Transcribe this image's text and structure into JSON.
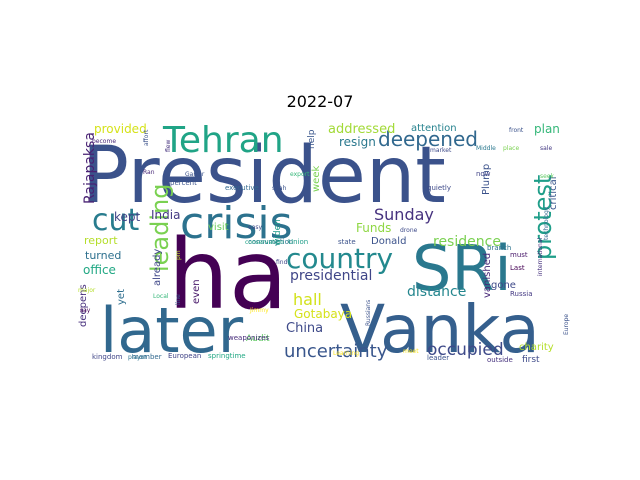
{
  "chart_data": {
    "type": "wordcloud",
    "title": "2022-07",
    "words": [
      {
        "text": "President",
        "weight": 100,
        "color": "#3b528b",
        "rotate": false
      },
      {
        "text": "ha",
        "weight": 92,
        "color": "#440154",
        "rotate": false
      },
      {
        "text": "later",
        "weight": 74,
        "color": "#31688e",
        "rotate": false
      },
      {
        "text": "Vanka",
        "weight": 72,
        "color": "#355f8d",
        "rotate": false
      },
      {
        "text": "SRi",
        "weight": 68,
        "color": "#2a788e",
        "rotate": false
      },
      {
        "text": "crisis",
        "weight": 50,
        "color": "#2c728e",
        "rotate": false
      },
      {
        "text": "Tehran",
        "weight": 42,
        "color": "#20a486",
        "rotate": false
      },
      {
        "text": "cut",
        "weight": 34,
        "color": "#287c8e",
        "rotate": false
      },
      {
        "text": "country",
        "weight": 30,
        "color": "#23898e",
        "rotate": false
      },
      {
        "text": "leading",
        "weight": 24,
        "color": "#7ad151",
        "rotate": true
      },
      {
        "text": "protest",
        "weight": 24,
        "color": "#1f9e89",
        "rotate": true
      },
      {
        "text": "deepened",
        "weight": 22,
        "color": "#31688e",
        "rotate": false
      },
      {
        "text": "uncertainty",
        "weight": 21,
        "color": "#39568c",
        "rotate": false
      },
      {
        "text": "occupied",
        "weight": 19,
        "color": "#3e4a89",
        "rotate": false
      },
      {
        "text": "Sunday",
        "weight": 18,
        "color": "#46327e",
        "rotate": false
      },
      {
        "text": "hall",
        "weight": 18,
        "color": "#d2e21b",
        "rotate": false
      },
      {
        "text": "presidential",
        "weight": 16,
        "color": "#404688",
        "rotate": false
      },
      {
        "text": "distance",
        "weight": 15,
        "color": "#24868e",
        "rotate": false
      },
      {
        "text": "residence",
        "weight": 15,
        "color": "#7ad151",
        "rotate": false
      },
      {
        "text": "Rajapaksa",
        "weight": 14,
        "color": "#482173",
        "rotate": true
      },
      {
        "text": "addressed",
        "weight": 14,
        "color": "#a2da37",
        "rotate": false
      },
      {
        "text": "China",
        "weight": 14,
        "color": "#3e4a89",
        "rotate": false
      },
      {
        "text": "provided",
        "weight": 13,
        "color": "#d5e21a",
        "rotate": false
      },
      {
        "text": "plan",
        "weight": 13,
        "color": "#35b779",
        "rotate": false
      },
      {
        "text": "resign",
        "weight": 13,
        "color": "#2a788e",
        "rotate": false
      },
      {
        "text": "India",
        "weight": 13,
        "color": "#443983",
        "rotate": false
      },
      {
        "text": "Funds",
        "weight": 13,
        "color": "#8fd744",
        "rotate": false
      },
      {
        "text": "office",
        "weight": 13,
        "color": "#22a884",
        "rotate": false
      },
      {
        "text": "Gotabaya",
        "weight": 12,
        "color": "#d5e21a",
        "rotate": false
      },
      {
        "text": "kept",
        "weight": 12,
        "color": "#414487",
        "rotate": false
      },
      {
        "text": "report",
        "weight": 12,
        "color": "#b5de2b",
        "rotate": false
      },
      {
        "text": "turned",
        "weight": 12,
        "color": "#2d708e",
        "rotate": false
      },
      {
        "text": "deepens",
        "weight": 11,
        "color": "#472f7d",
        "rotate": true
      },
      {
        "text": "gone",
        "weight": 11,
        "color": "#3e4989",
        "rotate": false
      },
      {
        "text": "attention",
        "weight": 11,
        "color": "#26828e",
        "rotate": false
      },
      {
        "text": "charity",
        "weight": 11,
        "color": "#b5de2b",
        "rotate": false
      },
      {
        "text": "Donald",
        "weight": 11,
        "color": "#3b528b",
        "rotate": false
      },
      {
        "text": "Plump",
        "weight": 11,
        "color": "#3b528b",
        "rotate": true
      },
      {
        "text": "week",
        "weight": 11,
        "color": "#7ad151",
        "rotate": true
      },
      {
        "text": "vanished",
        "weight": 11,
        "color": "#482878",
        "rotate": true
      },
      {
        "text": "critical",
        "weight": 11,
        "color": "#39568c",
        "rotate": true
      },
      {
        "text": "yet",
        "weight": 11,
        "color": "#2e6e8e",
        "rotate": true
      },
      {
        "text": "already",
        "weight": 11,
        "color": "#3f4788",
        "rotate": true
      },
      {
        "text": "even",
        "weight": 11,
        "color": "#48186a",
        "rotate": true
      },
      {
        "text": "visit",
        "weight": 10,
        "color": "#6ccd5a",
        "rotate": false
      },
      {
        "text": "Audit",
        "weight": 9,
        "color": "#5ec962",
        "rotate": false
      },
      {
        "text": "first",
        "weight": 9,
        "color": "#3e4a89",
        "rotate": false
      },
      {
        "text": "help",
        "weight": 9,
        "color": "#39568c",
        "rotate": true
      },
      {
        "text": "widen",
        "weight": 9,
        "color": "#1f9a8a",
        "rotate": true
      },
      {
        "text": "executive",
        "weight": 7,
        "color": "#31688e",
        "rotate": false
      },
      {
        "text": "European",
        "weight": 7,
        "color": "#414487",
        "rotate": false
      },
      {
        "text": "springtime",
        "weight": 7,
        "color": "#22a884",
        "rotate": false
      },
      {
        "text": "kingdom",
        "weight": 7,
        "color": "#404688",
        "rotate": false
      },
      {
        "text": "member",
        "weight": 6,
        "color": "#31688e",
        "rotate": false
      },
      {
        "text": "percent",
        "weight": 6,
        "color": "#3b528b",
        "rotate": false
      },
      {
        "text": "consumption",
        "weight": 6,
        "color": "#2a788e",
        "rotate": false
      },
      {
        "text": "weaponizes",
        "weight": 6,
        "color": "#472c7a",
        "rotate": false
      },
      {
        "text": "quietly",
        "weight": 6,
        "color": "#3e4a89",
        "rotate": false
      },
      {
        "text": "state",
        "weight": 6,
        "color": "#3b528b",
        "rotate": false
      },
      {
        "text": "Union",
        "weight": 6,
        "color": "#1f9e89",
        "rotate": false
      },
      {
        "text": "Russia",
        "weight": 6,
        "color": "#443983",
        "rotate": false
      },
      {
        "text": "Last",
        "weight": 6,
        "color": "#440154",
        "rotate": false
      },
      {
        "text": "must",
        "weight": 6,
        "color": "#48186a",
        "rotate": false
      },
      {
        "text": "leader",
        "weight": 6,
        "color": "#3b528b",
        "rotate": false
      },
      {
        "text": "outside",
        "weight": 6,
        "color": "#46327e",
        "rotate": false
      },
      {
        "text": "branch",
        "weight": 6,
        "color": "#2c728e",
        "rotate": false
      },
      {
        "text": "now",
        "weight": 6,
        "color": "#414487",
        "rotate": false
      },
      {
        "text": "shah",
        "weight": 6,
        "color": "#3b528b",
        "rotate": false
      },
      {
        "text": "export",
        "weight": 6,
        "color": "#35b779",
        "rotate": false
      },
      {
        "text": "Garter",
        "weight": 6,
        "color": "#3b528b",
        "rotate": false
      },
      {
        "text": "Ran",
        "weight": 6,
        "color": "#482878",
        "rotate": false
      },
      {
        "text": "say",
        "weight": 6,
        "color": "#440154",
        "rotate": false
      },
      {
        "text": "major",
        "weight": 6,
        "color": "#b5de2b",
        "rotate": false
      },
      {
        "text": "market",
        "weight": 5,
        "color": "#3e4a89",
        "rotate": false
      },
      {
        "text": "Middle",
        "weight": 5,
        "color": "#2a788e",
        "rotate": false
      },
      {
        "text": "place",
        "weight": 5,
        "color": "#7ad151",
        "rotate": false
      },
      {
        "text": "sale",
        "weight": 5,
        "color": "#443983",
        "rotate": false
      },
      {
        "text": "front",
        "weight": 5,
        "color": "#3b528b",
        "rotate": false
      },
      {
        "text": "seek",
        "weight": 5,
        "color": "#5ec962",
        "rotate": false
      },
      {
        "text": "drone",
        "weight": 5,
        "color": "#3e4a89",
        "rotate": false
      },
      {
        "text": "find",
        "weight": 5,
        "color": "#404688",
        "rotate": false
      },
      {
        "text": "meet",
        "weight": 5,
        "color": "#fde725",
        "rotate": false
      },
      {
        "text": "conservation",
        "weight": 5,
        "color": "#20a486",
        "rotate": false
      },
      {
        "text": "easy",
        "weight": 5,
        "color": "#3e4a89",
        "rotate": false
      },
      {
        "text": "Jimmy",
        "weight": 5,
        "color": "#fde725",
        "rotate": false
      },
      {
        "text": "Local",
        "weight": 5,
        "color": "#35b779",
        "rotate": false
      },
      {
        "text": "player",
        "weight": 5,
        "color": "#2c728e",
        "rotate": false
      },
      {
        "text": "become",
        "weight": 5,
        "color": "#482878",
        "rotate": false
      },
      {
        "text": "affort",
        "weight": 5,
        "color": "#3b528b",
        "rotate": true
      },
      {
        "text": "flew",
        "weight": 5,
        "color": "#46327e",
        "rotate": true
      },
      {
        "text": "line",
        "weight": 5,
        "color": "#39568c",
        "rotate": true
      },
      {
        "text": "pm",
        "weight": 5,
        "color": "#b5de2b",
        "rotate": true
      },
      {
        "text": "technology",
        "weight": 5,
        "color": "#31688e",
        "rotate": true
      },
      {
        "text": "international",
        "weight": 5,
        "color": "#46327e",
        "rotate": true
      },
      {
        "text": "Europe",
        "weight": 5,
        "color": "#3b528b",
        "rotate": true
      },
      {
        "text": "Russians",
        "weight": 5,
        "color": "#3b528b",
        "rotate": true
      },
      {
        "text": "Learning",
        "weight": 5,
        "color": "#fde725",
        "rotate": false
      }
    ]
  }
}
